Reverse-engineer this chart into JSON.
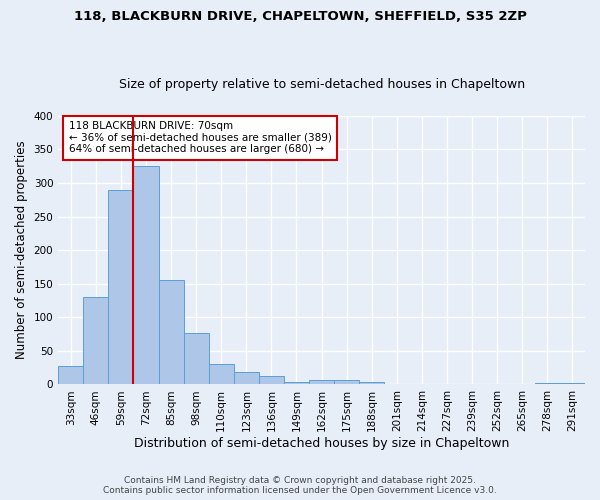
{
  "title1": "118, BLACKBURN DRIVE, CHAPELTOWN, SHEFFIELD, S35 2ZP",
  "title2": "Size of property relative to semi-detached houses in Chapeltown",
  "xlabel": "Distribution of semi-detached houses by size in Chapeltown",
  "ylabel": "Number of semi-detached properties",
  "footnote1": "Contains HM Land Registry data © Crown copyright and database right 2025.",
  "footnote2": "Contains public sector information licensed under the Open Government Licence v3.0.",
  "bin_labels": [
    "33sqm",
    "46sqm",
    "59sqm",
    "72sqm",
    "85sqm",
    "98sqm",
    "110sqm",
    "123sqm",
    "136sqm",
    "149sqm",
    "162sqm",
    "175sqm",
    "188sqm",
    "201sqm",
    "214sqm",
    "227sqm",
    "239sqm",
    "252sqm",
    "265sqm",
    "278sqm",
    "291sqm"
  ],
  "values": [
    28,
    130,
    290,
    325,
    155,
    77,
    30,
    19,
    13,
    4,
    6,
    6,
    3,
    1,
    0,
    0,
    0,
    0,
    0,
    2,
    2
  ],
  "bar_color": "#aec6e8",
  "bar_edge_color": "#5a9fd4",
  "property_line_color": "#cc0000",
  "annotation_line1": "118 BLACKBURN DRIVE: 70sqm",
  "annotation_line2": "← 36% of semi-detached houses are smaller (389)",
  "annotation_line3": "64% of semi-detached houses are larger (680) →",
  "annotation_box_color": "#ffffff",
  "annotation_box_edge": "#cc0000",
  "ylim": [
    0,
    400
  ],
  "yticks": [
    0,
    50,
    100,
    150,
    200,
    250,
    300,
    350,
    400
  ],
  "background_color": "#e8eef8",
  "grid_color": "#ffffff",
  "title1_fontsize": 9.5,
  "title2_fontsize": 9,
  "xlabel_fontsize": 9,
  "ylabel_fontsize": 8.5,
  "tick_fontsize": 7.5,
  "annotation_fontsize": 7.5,
  "footnote_fontsize": 6.5
}
